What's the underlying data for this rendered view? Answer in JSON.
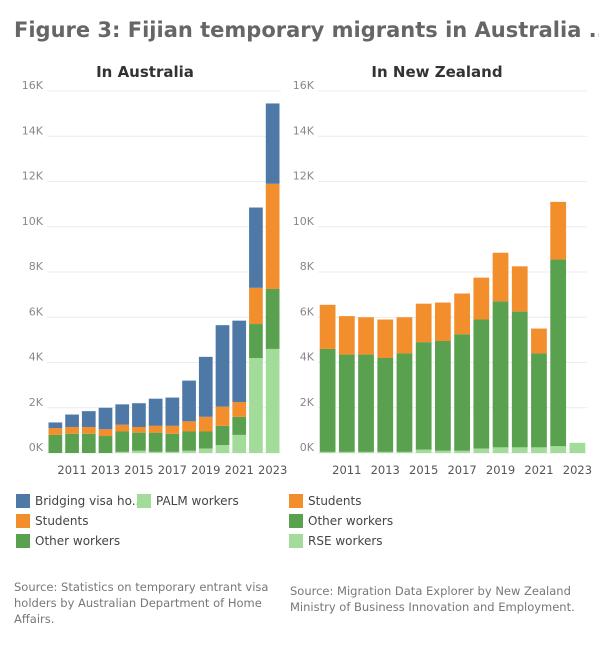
{
  "figure_title": "Figure 3: Fijian temporary migrants in Australia ..",
  "colors": {
    "bridging": "#4e79a7",
    "students": "#f28e2b",
    "other": "#59a14f",
    "palm": "#a3dc9a",
    "rse": "#a3dc9a"
  },
  "chart_data": [
    {
      "type": "bar",
      "stacked": true,
      "title": "In Australia",
      "categories": [
        "2010",
        "2011",
        "2012",
        "2013",
        "2014",
        "2015",
        "2016",
        "2017",
        "2018",
        "2019",
        "2020",
        "2021",
        "2022",
        "2023"
      ],
      "x_tick_labels": [
        "2011",
        "2013",
        "2015",
        "2017",
        "2019",
        "2021",
        "2023"
      ],
      "y_tick_labels": [
        "0K",
        "2K",
        "4K",
        "6K",
        "8K",
        "10K",
        "12K",
        "14K",
        "16K"
      ],
      "ylim": [
        0,
        16000
      ],
      "series": [
        {
          "name": "PALM workers",
          "key": "palm",
          "values": [
            0,
            0,
            0,
            0,
            50,
            100,
            50,
            50,
            100,
            200,
            350,
            800,
            4200,
            4600
          ]
        },
        {
          "name": "Other workers",
          "key": "other",
          "values": [
            800,
            850,
            850,
            750,
            900,
            800,
            850,
            800,
            850,
            750,
            850,
            800,
            1500,
            2650
          ]
        },
        {
          "name": "Students",
          "key": "students",
          "values": [
            300,
            300,
            300,
            300,
            300,
            250,
            300,
            350,
            450,
            650,
            850,
            650,
            1600,
            4650
          ]
        },
        {
          "name": "Bridging visa ho..",
          "key": "bridging",
          "values": [
            250,
            550,
            700,
            950,
            900,
            1050,
            1200,
            1250,
            1800,
            2650,
            3600,
            3600,
            3550,
            3550
          ]
        }
      ],
      "legend": [
        {
          "label": "Bridging visa ho..",
          "key": "bridging"
        },
        {
          "label": "PALM workers",
          "key": "palm"
        },
        {
          "label": "Students",
          "key": "students"
        },
        {
          "label": "Other workers",
          "key": "other"
        }
      ],
      "grid": true
    },
    {
      "type": "bar",
      "stacked": true,
      "title": "In New Zealand",
      "categories": [
        "2010",
        "2011",
        "2012",
        "2013",
        "2014",
        "2015",
        "2016",
        "2017",
        "2018",
        "2019",
        "2020",
        "2021",
        "2022",
        "2023"
      ],
      "x_tick_labels": [
        "2011",
        "2013",
        "2015",
        "2017",
        "2019",
        "2021",
        "2023"
      ],
      "y_tick_labels": [
        "0K",
        "2K",
        "4K",
        "6K",
        "8K",
        "10K",
        "12K",
        "14K",
        "16K"
      ],
      "ylim": [
        0,
        16000
      ],
      "series": [
        {
          "name": "RSE workers",
          "key": "rse",
          "values": [
            50,
            50,
            50,
            50,
            50,
            150,
            100,
            100,
            200,
            250,
            250,
            250,
            300,
            450
          ]
        },
        {
          "name": "Other workers",
          "key": "other",
          "values": [
            4550,
            4300,
            4300,
            4150,
            4350,
            4750,
            4850,
            5150,
            5700,
            6450,
            6000,
            4150,
            8250,
            0
          ]
        },
        {
          "name": "Students",
          "key": "students",
          "values": [
            1950,
            1700,
            1650,
            1700,
            1600,
            1700,
            1700,
            1800,
            1850,
            2150,
            2000,
            1100,
            2550,
            0
          ]
        }
      ],
      "legend": [
        {
          "label": "Students",
          "key": "students"
        },
        {
          "label": "Other workers",
          "key": "other"
        },
        {
          "label": "RSE workers",
          "key": "rse"
        }
      ],
      "grid": true
    }
  ],
  "sources": {
    "australia": "Source: Statistics on temporary entrant visa holders by Australian Department of Home Affairs.",
    "nz": "Source: Migration Data Explorer by New Zealand Ministry of Business Innovation and Employment."
  }
}
